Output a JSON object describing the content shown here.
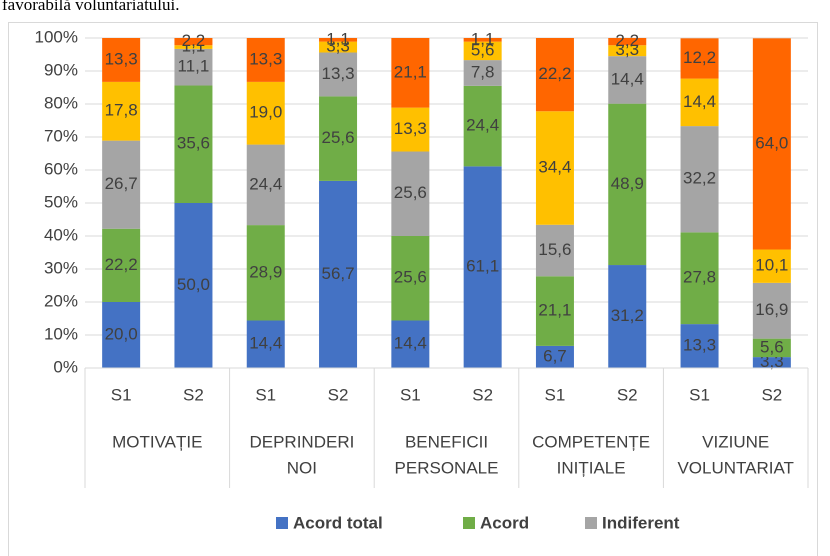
{
  "caption": "favorabilă voluntariatului.",
  "chart_data": {
    "type": "stacked_bar",
    "categories": [
      "S1",
      "S2",
      "S1",
      "S2",
      "S1",
      "S2",
      "S1",
      "S2",
      "S1",
      "S2"
    ],
    "groups": [
      [
        "MOTIVAȚIE"
      ],
      [
        "DEPRINDERI",
        "NOI"
      ],
      [
        "BENEFICII",
        "PERSONALE"
      ],
      [
        "COMPETENȚE",
        "INIȚIALE"
      ],
      [
        "VIZIUNE",
        "VOLUNTARIAT"
      ]
    ],
    "series": [
      {
        "name": "Acord total",
        "color": "#4472c4",
        "values": [
          20.0,
          50.0,
          14.4,
          56.7,
          14.4,
          61.1,
          6.7,
          31.2,
          13.3,
          3.3
        ],
        "value_labels": [
          "20,0",
          "50,0",
          "14,4",
          "56,7",
          "14,4",
          "61,1",
          "6,7",
          "31,2",
          "13,3",
          "3,3"
        ]
      },
      {
        "name": "Acord",
        "color": "#70ad47",
        "values": [
          22.2,
          35.6,
          28.9,
          25.6,
          25.6,
          24.4,
          21.1,
          48.9,
          27.8,
          5.6
        ],
        "value_labels": [
          "22,2",
          "35,6",
          "28,9",
          "25,6",
          "25,6",
          "24,4",
          "21,1",
          "48,9",
          "27,8",
          "5,6"
        ]
      },
      {
        "name": "Indiferent",
        "color": "#a5a5a5",
        "values": [
          26.7,
          11.1,
          24.4,
          13.3,
          25.6,
          7.8,
          15.6,
          14.4,
          32.2,
          16.9
        ],
        "value_labels": [
          "26,7",
          "11,1",
          "24,4",
          "13,3",
          "25,6",
          "7,8",
          "15,6",
          "14,4",
          "32,2",
          "16,9"
        ]
      },
      {
        "color": "#ffc000",
        "values": [
          17.8,
          1.1,
          19.0,
          3.3,
          13.3,
          5.6,
          34.4,
          3.3,
          14.4,
          10.1
        ],
        "value_labels": [
          "17,8",
          "1,1",
          "19,0",
          "3,3",
          "13,3",
          "5,6",
          "34,4",
          "3,3",
          "14,4",
          "10,1"
        ]
      },
      {
        "color": "#ff6600",
        "values": [
          13.3,
          2.2,
          13.3,
          1.1,
          21.1,
          1.1,
          22.2,
          2.2,
          12.2,
          64.0
        ],
        "value_labels": [
          "13,3",
          "2,2",
          "13,3",
          "1,1",
          "21,1",
          "1,1",
          "22,2",
          "2,2",
          "12,2",
          "64,0"
        ]
      }
    ],
    "ylim": [
      0,
      100
    ],
    "yticks": [
      {
        "value": 0,
        "label": "0%"
      },
      {
        "value": 10,
        "label": "10%"
      },
      {
        "value": 20,
        "label": "20%"
      },
      {
        "value": 30,
        "label": "30%"
      },
      {
        "value": 40,
        "label": "40%"
      },
      {
        "value": 50,
        "label": "50%"
      },
      {
        "value": 60,
        "label": "60%"
      },
      {
        "value": 70,
        "label": "70%"
      },
      {
        "value": 80,
        "label": "80%"
      },
      {
        "value": 90,
        "label": "90%"
      },
      {
        "value": 100,
        "label": "100%"
      }
    ],
    "grid": true
  }
}
